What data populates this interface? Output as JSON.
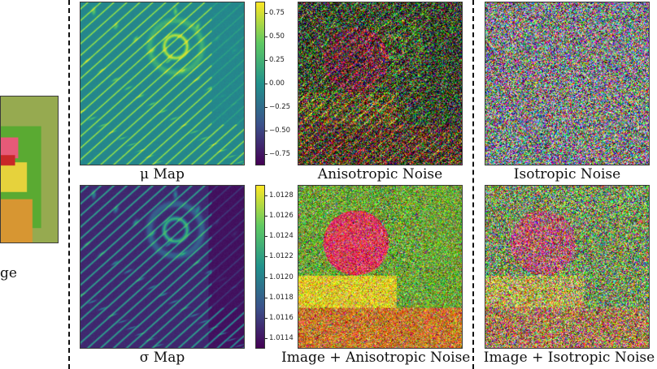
{
  "captions": {
    "input": "ge",
    "mu_map": "μ Map",
    "sigma_map": "σ Map",
    "aniso_noise": "Anisotropic Noise",
    "iso_noise": "Isotropic Noise",
    "img_aniso": "Image + Anisotropic Noise",
    "img_iso": "Image + Isotropic Noise"
  },
  "mu_colorbar": {
    "ticks": [
      "0.75",
      "0.50",
      "0.25",
      "0.00",
      "−0.25",
      "−0.50",
      "−0.75"
    ]
  },
  "sigma_colorbar": {
    "ticks": [
      "1.0128",
      "1.0126",
      "1.0124",
      "1.0122",
      "1.0120",
      "1.0118",
      "1.0116",
      "1.0114"
    ]
  },
  "colormap": [
    "#440154",
    "#3b528b",
    "#21918c",
    "#5ec962",
    "#fde725"
  ]
}
